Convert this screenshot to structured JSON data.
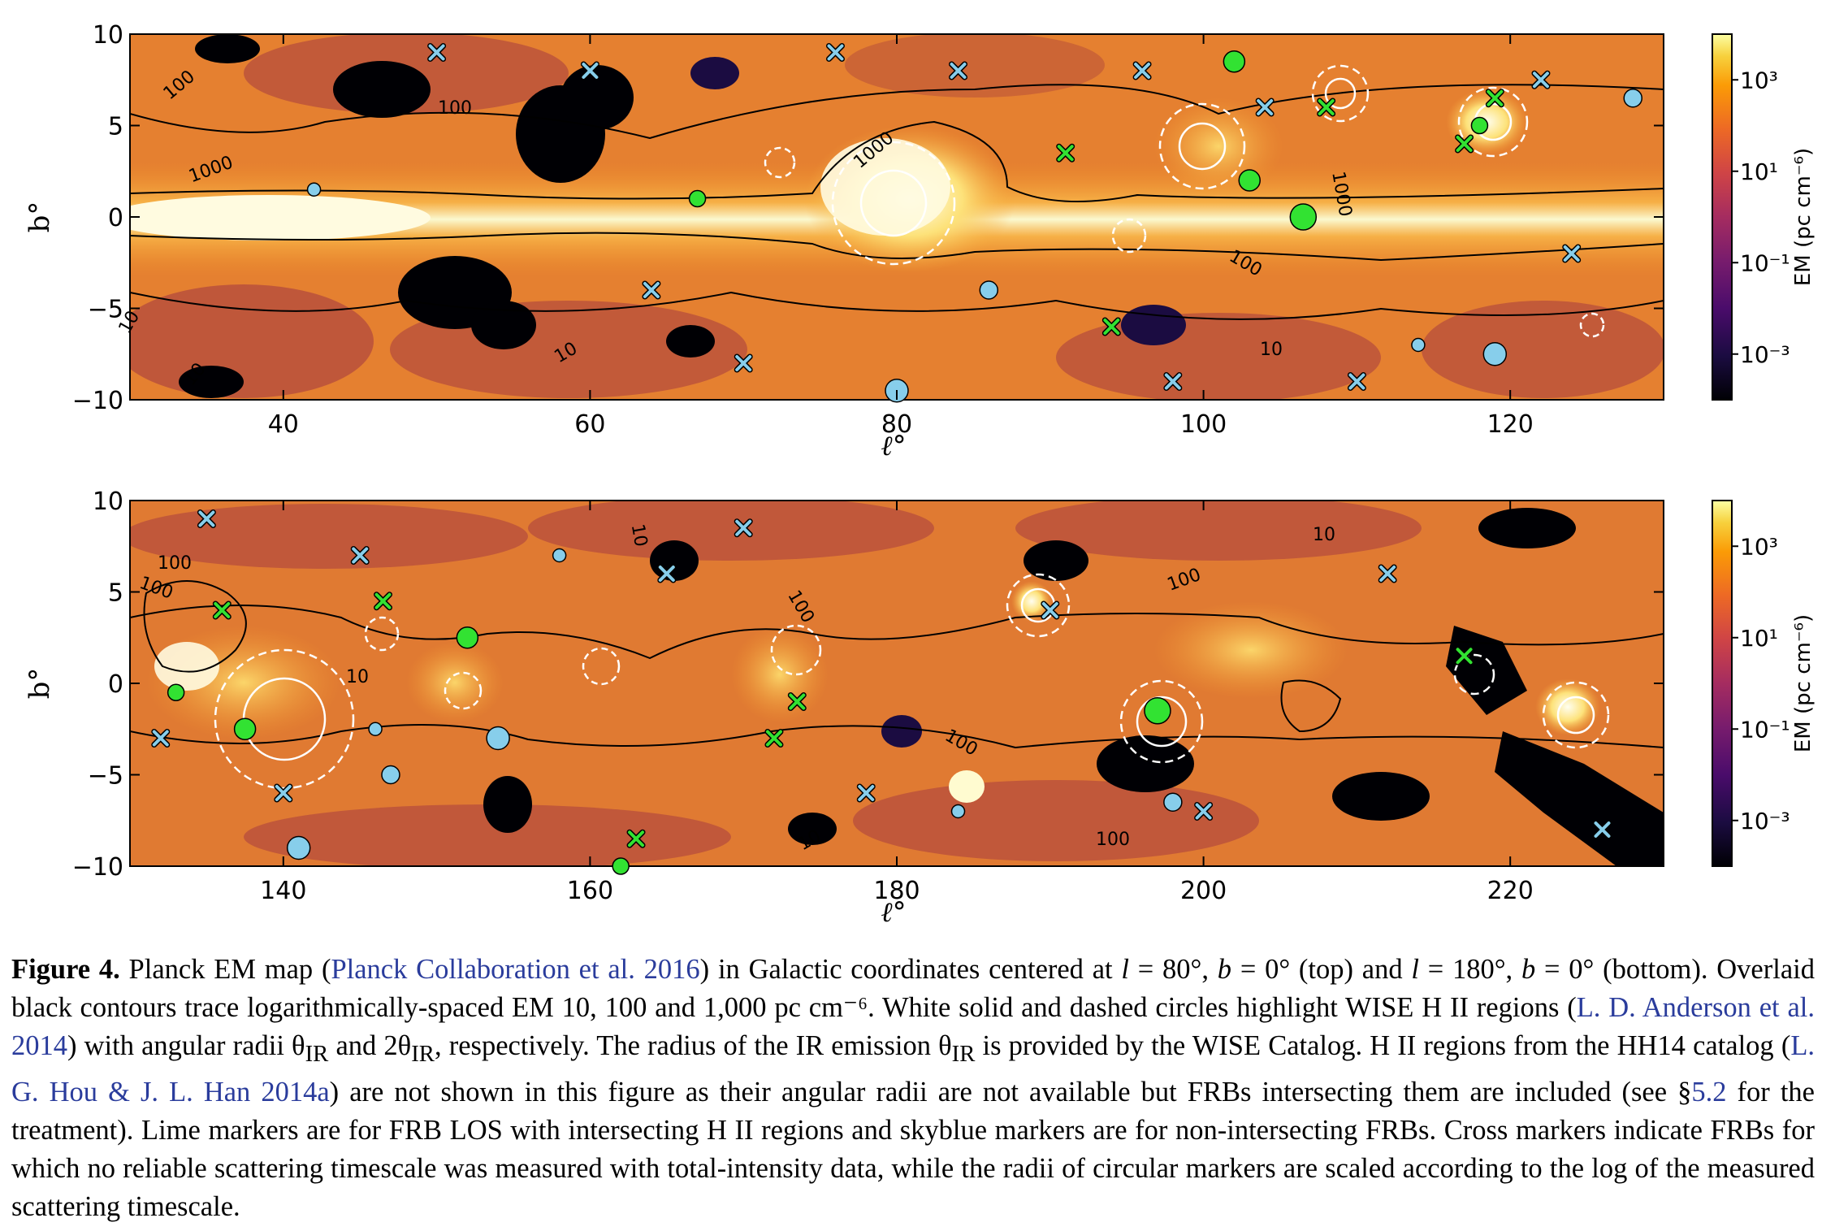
{
  "figure": {
    "panels": [
      {
        "id": "top",
        "ylabel": "b°",
        "xlabel": "ℓ°",
        "xticks": [
          "40",
          "60",
          "80",
          "100",
          "120"
        ],
        "yticks": [
          "10",
          "5",
          "0",
          "−5",
          "−10"
        ],
        "contour_labels": [
          "1000",
          "1000",
          "1000",
          "100",
          "100",
          "100",
          "10",
          "10",
          "10",
          "10"
        ]
      },
      {
        "id": "bottom",
        "ylabel": "b°",
        "xlabel": "ℓ°",
        "xticks": [
          "140",
          "160",
          "180",
          "200",
          "220"
        ],
        "yticks": [
          "10",
          "5",
          "0",
          "−5",
          "−10"
        ],
        "contour_labels": [
          "100",
          "100",
          "100",
          "100",
          "100",
          "100",
          "10",
          "10",
          "10",
          "10"
        ]
      }
    ],
    "colorbar": {
      "label": "EM (pc cm⁻⁶)",
      "ticks": [
        "10³",
        "10¹",
        "10⁻¹",
        "10⁻³"
      ]
    },
    "colors": {
      "high": "#fcffa4",
      "mid": "#f0922a",
      "low": "#b0483c",
      "void": "#000004",
      "skyblue": "#87ceeb",
      "lime": "#32e232"
    }
  },
  "chart_data": [
    {
      "type": "heatmap",
      "title": "",
      "xlabel": "ℓ°",
      "ylabel": "b°",
      "xlim": [
        30,
        130
      ],
      "ylim": [
        -10,
        10
      ],
      "colorbar": {
        "label": "EM (pc cm⁻⁶)",
        "scale": "log",
        "range": [
          0.0001,
          10000
        ]
      },
      "contour_levels": [
        10,
        100,
        1000
      ],
      "markers": {
        "lime_circles": [
          [
            67,
            1
          ],
          [
            102,
            8.5
          ],
          [
            106.5,
            0
          ],
          [
            118,
            5
          ],
          [
            103,
            2
          ]
        ],
        "skyblue_circles": [
          [
            42,
            1.5
          ],
          [
            86,
            -4
          ],
          [
            80,
            -9.5
          ],
          [
            114,
            -7
          ],
          [
            128,
            6.5
          ],
          [
            119,
            -7.5
          ]
        ],
        "lime_crosses": [
          [
            91,
            3.5
          ],
          [
            94,
            -6
          ],
          [
            108,
            6
          ],
          [
            119,
            6.5
          ],
          [
            117,
            4
          ]
        ],
        "skyblue_crosses": [
          [
            50,
            9
          ],
          [
            60,
            8
          ],
          [
            76,
            9
          ],
          [
            84,
            8
          ],
          [
            96,
            8
          ],
          [
            104,
            6
          ],
          [
            122,
            7.5
          ],
          [
            110,
            -9
          ],
          [
            98,
            -9
          ],
          [
            64,
            -4
          ],
          [
            70,
            -8
          ],
          [
            124,
            -2
          ]
        ]
      }
    },
    {
      "type": "heatmap",
      "title": "",
      "xlabel": "ℓ°",
      "ylabel": "b°",
      "xlim": [
        130,
        230
      ],
      "ylim": [
        -10,
        10
      ],
      "colorbar": {
        "label": "EM (pc cm⁻⁶)",
        "scale": "log",
        "range": [
          0.0001,
          10000
        ]
      },
      "contour_levels": [
        10,
        100,
        1000
      ],
      "markers": {
        "lime_circles": [
          [
            133,
            -0.5
          ],
          [
            137.5,
            -2.5
          ],
          [
            197,
            -1.5
          ],
          [
            162,
            -10
          ],
          [
            152,
            2.5
          ]
        ],
        "skyblue_circles": [
          [
            146,
            -2.5
          ],
          [
            147,
            -5
          ],
          [
            154,
            -3
          ],
          [
            184,
            -7
          ],
          [
            198,
            -6.5
          ],
          [
            141,
            -9
          ],
          [
            158,
            7
          ]
        ],
        "lime_crosses": [
          [
            136,
            4
          ],
          [
            146.5,
            4.5
          ],
          [
            173.5,
            -1
          ],
          [
            172,
            -3
          ],
          [
            217,
            1.5
          ],
          [
            163,
            -8.5
          ]
        ],
        "skyblue_crosses": [
          [
            135,
            9
          ],
          [
            145,
            7
          ],
          [
            165,
            6
          ],
          [
            170,
            8.5
          ],
          [
            190,
            4
          ],
          [
            212,
            6
          ],
          [
            226,
            -8
          ],
          [
            200,
            -7
          ],
          [
            178,
            -6
          ],
          [
            140,
            -6
          ],
          [
            132,
            -3
          ]
        ]
      }
    }
  ],
  "caption": {
    "fig_label": "Figure 4.",
    "t1": " Planck EM map (",
    "ref1": "Planck Collaboration et al. 2016",
    "t2": ") in Galactic coordinates centered at ",
    "t3": "l",
    "t4": " = 80°, ",
    "t5": "b",
    "t6": " = 0° (top) and ",
    "t7": "l",
    "t8": " = 180°, ",
    "t9": "b",
    "t10": " = 0° (bottom). Overlaid black contours trace logarithmically-spaced EM 10, 100 and 1,000  pc cm⁻⁶. White solid and dashed circles highlight WISE H II regions (",
    "ref2": "L. D. Anderson et al. 2014",
    "t11": ") with angular radii θ",
    "t12": "IR",
    "t13": " and 2θ",
    "t14": "IR",
    "t15": ", respectively.  The radius of the IR emission θ",
    "t16": "IR",
    "t17": " is provided by the WISE Catalog. H II regions from the HH14 catalog (",
    "ref3": "L. G. Hou & J. L. Han 2014a",
    "t18": ") are not shown in this figure as their angular radii are not available but FRBs intersecting them are included (see §",
    "ref4": "5.2",
    "t19": " for the treatment). Lime markers are for FRB LOS with intersecting H II regions and skyblue markers are for non-intersecting FRBs. Cross markers indicate FRBs for which no reliable scattering timescale was measured with total-intensity data, while the radii of circular markers are scaled according to the log of the measured scattering timescale."
  }
}
